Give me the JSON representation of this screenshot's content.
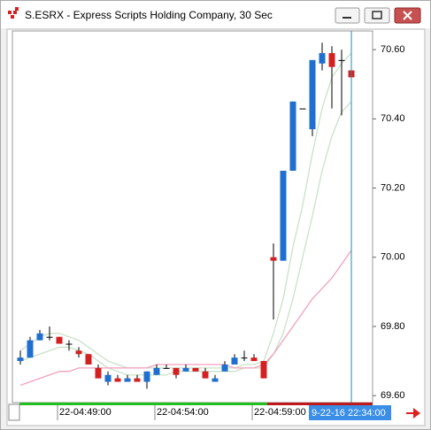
{
  "chart_data": {
    "type": "candlestick",
    "title": "S.ESRX - Express Scripts Holding Company, 30 Sec",
    "categories": [
      null,
      null,
      null,
      null,
      "22-04:49:00",
      null,
      null,
      null,
      null,
      null,
      null,
      null,
      null,
      null,
      "22-04:54:00",
      null,
      null,
      null,
      null,
      null,
      null,
      null,
      null,
      null,
      "22-04:59:00",
      null,
      null,
      null,
      null,
      null,
      null,
      null,
      null,
      null,
      null
    ],
    "open": [
      69.7,
      69.71,
      69.76,
      69.77,
      69.77,
      69.75,
      69.73,
      69.72,
      69.68,
      69.64,
      69.65,
      69.64,
      69.65,
      69.64,
      69.66,
      69.68,
      69.68,
      69.67,
      69.68,
      69.67,
      69.64,
      69.67,
      69.69,
      69.71,
      69.71,
      69.7,
      70.0,
      69.99,
      70.25,
      70.43,
      70.37,
      70.56,
      70.59,
      70.57,
      70.54
    ],
    "high": [
      69.73,
      69.77,
      69.79,
      69.8,
      69.77,
      69.76,
      69.74,
      69.72,
      69.69,
      69.67,
      69.66,
      69.66,
      69.66,
      69.67,
      69.69,
      69.69,
      69.68,
      69.69,
      69.68,
      69.68,
      69.66,
      69.7,
      69.72,
      69.73,
      69.72,
      69.7,
      70.04,
      70.25,
      70.45,
      70.43,
      70.57,
      70.62,
      70.61,
      70.6,
      70.55
    ],
    "low": [
      69.69,
      69.71,
      69.76,
      69.76,
      69.75,
      69.73,
      69.71,
      69.69,
      69.65,
      69.63,
      69.64,
      69.64,
      69.64,
      69.62,
      69.66,
      69.68,
      69.65,
      69.67,
      69.67,
      69.65,
      69.64,
      69.67,
      69.69,
      69.7,
      69.7,
      69.65,
      69.82,
      69.99,
      70.25,
      70.43,
      70.35,
      70.54,
      70.43,
      70.41,
      70.52
    ],
    "close": [
      69.71,
      69.76,
      69.78,
      69.77,
      69.75,
      69.75,
      69.72,
      69.69,
      69.65,
      69.66,
      69.64,
      69.65,
      69.64,
      69.67,
      69.68,
      69.68,
      69.66,
      69.68,
      69.67,
      69.65,
      69.65,
      69.69,
      69.71,
      69.71,
      69.7,
      69.65,
      69.99,
      70.25,
      70.45,
      70.43,
      70.57,
      70.59,
      70.55,
      70.57,
      70.52
    ],
    "up_color": "#1f6fd0",
    "down_color": "#d42020",
    "overlays": [
      {
        "color": "#c8e2c8",
        "values": [
          69.73,
          69.75,
          69.77,
          69.78,
          69.78,
          69.77,
          69.76,
          69.74,
          69.72,
          69.7,
          69.69,
          69.68,
          69.68,
          69.68,
          69.68,
          69.68,
          69.68,
          69.68,
          69.68,
          69.68,
          69.68,
          69.68,
          69.68,
          69.69,
          69.69,
          69.7,
          69.78,
          69.88,
          70.03,
          70.15,
          70.3,
          70.43,
          70.52,
          70.56,
          70.59
        ]
      },
      {
        "color": "#c8e2c8",
        "values": [
          69.7,
          69.71,
          69.72,
          69.73,
          69.74,
          69.74,
          69.73,
          69.72,
          69.7,
          69.68,
          69.67,
          69.66,
          69.66,
          69.66,
          69.66,
          69.66,
          69.67,
          69.67,
          69.67,
          69.67,
          69.67,
          69.67,
          69.67,
          69.68,
          69.68,
          69.68,
          69.72,
          69.78,
          69.88,
          70.0,
          70.12,
          70.25,
          70.35,
          70.42,
          70.45
        ]
      },
      {
        "color": "#f4a0bc",
        "values": [
          69.63,
          69.64,
          69.65,
          69.66,
          69.67,
          69.67,
          69.68,
          69.68,
          69.68,
          69.68,
          69.68,
          69.68,
          69.68,
          69.68,
          69.69,
          69.69,
          69.69,
          69.69,
          69.69,
          69.69,
          69.69,
          69.69,
          69.68,
          69.68,
          69.68,
          69.69,
          69.72,
          69.76,
          69.8,
          69.84,
          69.88,
          69.91,
          69.94,
          69.98,
          70.02
        ]
      }
    ],
    "ylim": [
      69.58,
      70.654
    ],
    "yticks": [
      {
        "value": 69.6,
        "label": "69.60"
      },
      {
        "value": 69.8,
        "label": "69.80"
      },
      {
        "value": 70.0,
        "label": "70.00"
      },
      {
        "value": 70.2,
        "label": "70.20"
      },
      {
        "value": 70.4,
        "label": "70.40"
      },
      {
        "value": 70.6,
        "label": "70.60"
      }
    ],
    "cursor_label": "9-22-16 22:34:00"
  }
}
